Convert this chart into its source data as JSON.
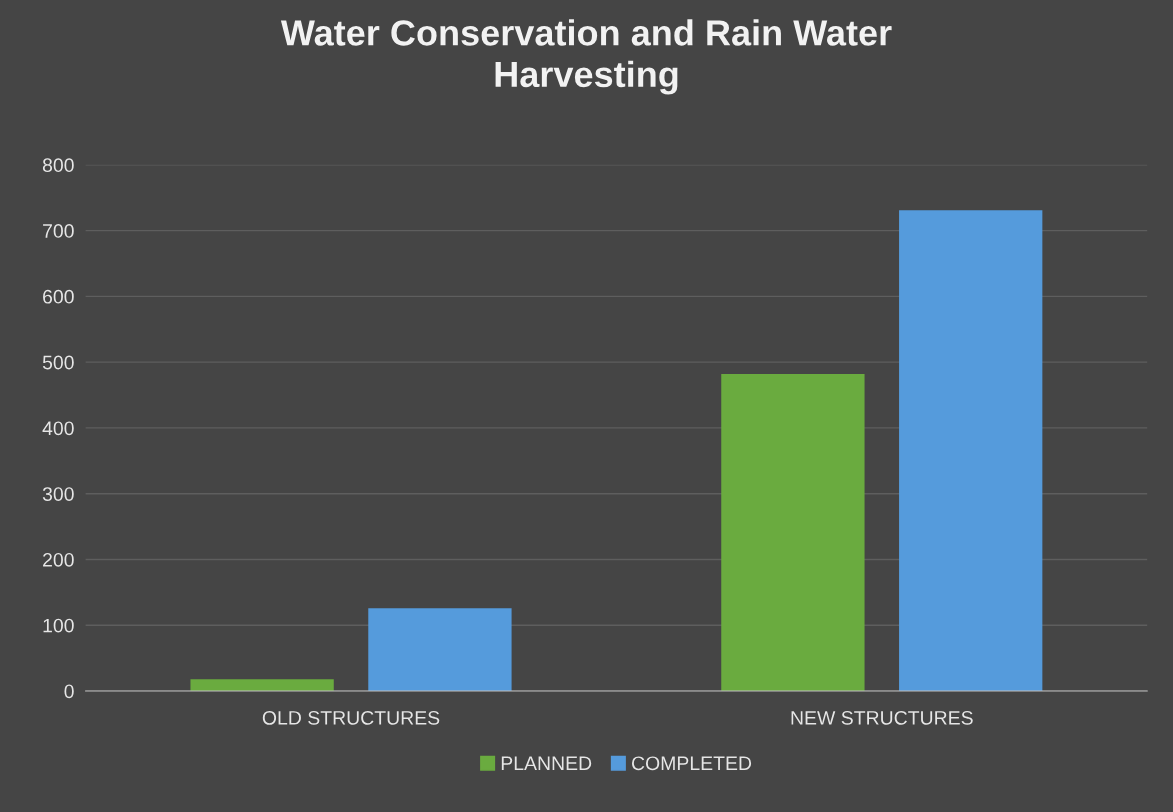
{
  "chart_data": {
    "type": "bar",
    "title": "Water Conservation and Rain Water\nHarvesting",
    "categories": [
      "OLD STRUCTURES",
      "NEW STRUCTURES"
    ],
    "series": [
      {
        "name": "PLANNED",
        "color": "#6aab3f",
        "values": [
          18,
          482
        ]
      },
      {
        "name": "COMPLETED",
        "color": "#559bdc",
        "values": [
          126,
          731
        ]
      }
    ],
    "ylim": [
      0,
      800
    ],
    "yticks": [
      0,
      100,
      200,
      300,
      400,
      500,
      600,
      700,
      800
    ],
    "grid": "y",
    "legend": "bottom"
  }
}
